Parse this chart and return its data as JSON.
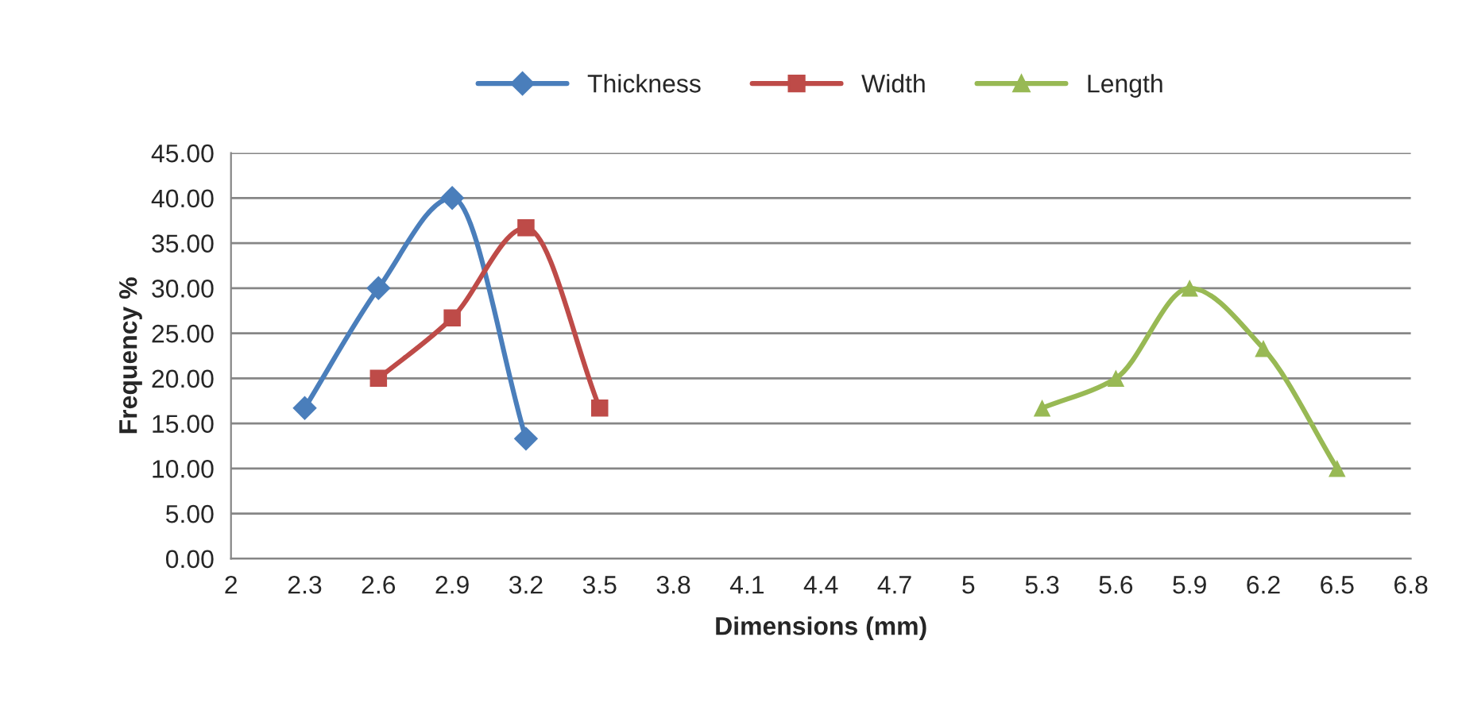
{
  "chart_data": {
    "type": "line",
    "xlabel": "Dimensions (mm)",
    "ylabel": "Frequency %",
    "series": [
      {
        "name": "Thickness",
        "color": "#4a7ebb",
        "marker": "diamond",
        "x": [
          2.3,
          2.6,
          2.9,
          3.2
        ],
        "values": [
          16.7,
          30.0,
          40.0,
          13.3
        ]
      },
      {
        "name": "Width",
        "color": "#be4b48",
        "marker": "square",
        "x": [
          2.6,
          2.9,
          3.2,
          3.5
        ],
        "values": [
          20.0,
          26.7,
          36.7,
          16.7
        ]
      },
      {
        "name": "Length",
        "color": "#98b954",
        "marker": "triangle",
        "x": [
          5.3,
          5.6,
          5.9,
          6.2,
          6.5
        ],
        "values": [
          16.7,
          20.0,
          30.0,
          23.3,
          10.0
        ]
      }
    ],
    "xlim": [
      2,
      6.8
    ],
    "xticks": [
      2,
      2.3,
      2.6,
      2.9,
      3.2,
      3.5,
      3.8,
      4.1,
      4.4,
      4.7,
      5,
      5.3,
      5.6,
      5.9,
      6.2,
      6.5,
      6.8
    ],
    "ylim": [
      0,
      45
    ],
    "yticks": [
      {
        "value": 0,
        "label": "0.00"
      },
      {
        "value": 5,
        "label": "5.00"
      },
      {
        "value": 10,
        "label": "10.00"
      },
      {
        "value": 15,
        "label": "15.00"
      },
      {
        "value": 20,
        "label": "20.00"
      },
      {
        "value": 25,
        "label": "25.00"
      },
      {
        "value": 30,
        "label": "30.00"
      },
      {
        "value": 35,
        "label": "35.00"
      },
      {
        "value": 40,
        "label": "40.00"
      },
      {
        "value": 45,
        "label": "45.00"
      }
    ],
    "grid": "y",
    "legend": "top",
    "line_style": "solid"
  }
}
